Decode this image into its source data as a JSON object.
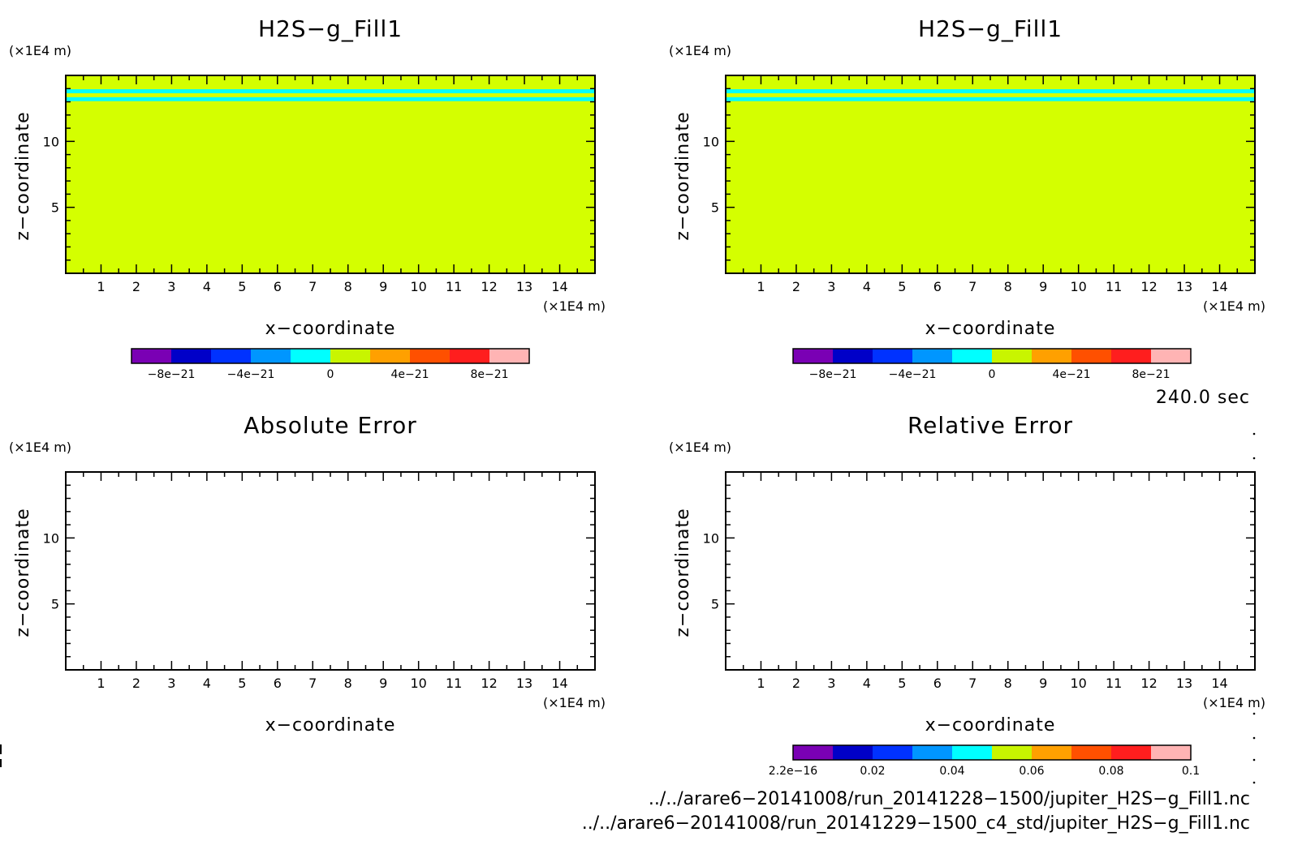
{
  "chart_data": [
    {
      "type": "heatmap",
      "title": "H2S−g_Fill1",
      "xlabel": "x−coordinate",
      "ylabel": "z−coordinate",
      "x_unit": "(×1E4 m)",
      "y_unit": "(×1E4 m)",
      "xlim": [
        0,
        15
      ],
      "ylim": [
        0,
        15
      ],
      "x_ticks": [
        "1",
        "2",
        "3",
        "4",
        "5",
        "6",
        "7",
        "8",
        "9",
        "10",
        "11",
        "12",
        "13",
        "14"
      ],
      "y_ticks": [
        "5",
        "10"
      ],
      "field_value": 0,
      "bands": [
        {
          "z_range": [
            13.65,
            13.95
          ],
          "value": -1e-21
        },
        {
          "z_range": [
            13.05,
            13.35
          ],
          "value": -1e-21
        }
      ],
      "colorbar": {
        "range": [
          -1e-20,
          1e-20
        ],
        "labels": [
          "−8e−21",
          "−4e−21",
          "0",
          "4e−21",
          "8e−21"
        ]
      }
    },
    {
      "type": "heatmap",
      "title": "H2S−g_Fill1",
      "xlabel": "x−coordinate",
      "ylabel": "z−coordinate",
      "x_unit": "(×1E4 m)",
      "y_unit": "(×1E4 m)",
      "xlim": [
        0,
        15
      ],
      "ylim": [
        0,
        15
      ],
      "x_ticks": [
        "1",
        "2",
        "3",
        "4",
        "5",
        "6",
        "7",
        "8",
        "9",
        "10",
        "11",
        "12",
        "13",
        "14"
      ],
      "y_ticks": [
        "5",
        "10"
      ],
      "field_value": 0,
      "bands": [
        {
          "z_range": [
            13.65,
            13.95
          ],
          "value": -1e-21
        },
        {
          "z_range": [
            13.05,
            13.35
          ],
          "value": -1e-21
        }
      ],
      "colorbar": {
        "range": [
          -1e-20,
          1e-20
        ],
        "labels": [
          "−8e−21",
          "−4e−21",
          "0",
          "4e−21",
          "8e−21"
        ]
      }
    },
    {
      "type": "heatmap",
      "title": "Absolute Error",
      "xlabel": "x−coordinate",
      "ylabel": "z−coordinate",
      "x_unit": "(×1E4 m)",
      "y_unit": "(×1E4 m)",
      "xlim": [
        0,
        15
      ],
      "ylim": [
        0,
        15
      ],
      "x_ticks": [
        "1",
        "2",
        "3",
        "4",
        "5",
        "6",
        "7",
        "8",
        "9",
        "10",
        "11",
        "12",
        "13",
        "14"
      ],
      "y_ticks": [
        "5",
        "10"
      ],
      "field_value": null
    },
    {
      "type": "heatmap",
      "title": "Relative Error",
      "xlabel": "x−coordinate",
      "ylabel": "z−coordinate",
      "x_unit": "(×1E4 m)",
      "y_unit": "(×1E4 m)",
      "xlim": [
        0,
        15
      ],
      "ylim": [
        0,
        15
      ],
      "x_ticks": [
        "1",
        "2",
        "3",
        "4",
        "5",
        "6",
        "7",
        "8",
        "9",
        "10",
        "11",
        "12",
        "13",
        "14"
      ],
      "y_ticks": [
        "5",
        "10"
      ],
      "field_value": null,
      "colorbar": {
        "range": [
          2.2e-16,
          0.1
        ],
        "labels": [
          "2.2e−16",
          "0.02",
          "0.04",
          "0.06",
          "0.08",
          "0.1"
        ]
      }
    }
  ],
  "colormap": [
    "#7a00b4",
    "#0000c8",
    "#0032ff",
    "#0096ff",
    "#00ffff",
    "#c8f500",
    "#ffa000",
    "#ff5000",
    "#ff1e1e",
    "#ffb4b4"
  ],
  "field_color": "#d4ff00",
  "band_color": "#00ffff",
  "time_label": "240.0 sec",
  "files": [
    "../../arare6−20141008/run_20141228−1500/jupiter_H2S−g_Fill1.nc",
    "../../arare6−20141008/run_20141229−1500_c4_std/jupiter_H2S−g_Fill1.nc"
  ]
}
